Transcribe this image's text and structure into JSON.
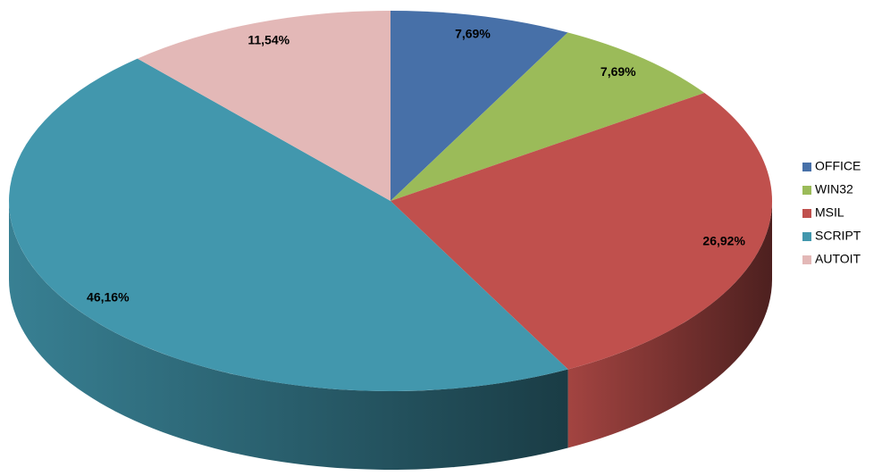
{
  "chart_data": {
    "type": "pie",
    "three_d": true,
    "categories": [
      "OFFICE",
      "WIN32",
      "MSIL",
      "SCRIPT",
      "AUTOIT"
    ],
    "values": [
      7.69,
      7.69,
      26.92,
      46.16,
      11.54
    ],
    "value_labels": [
      "7,69%",
      "7,69%",
      "26,92%",
      "46,16%",
      "11,54%"
    ],
    "colors": [
      "#4770a8",
      "#9bbb59",
      "#c0504d",
      "#4297ad",
      "#e3b8b7"
    ],
    "legend": "right"
  }
}
